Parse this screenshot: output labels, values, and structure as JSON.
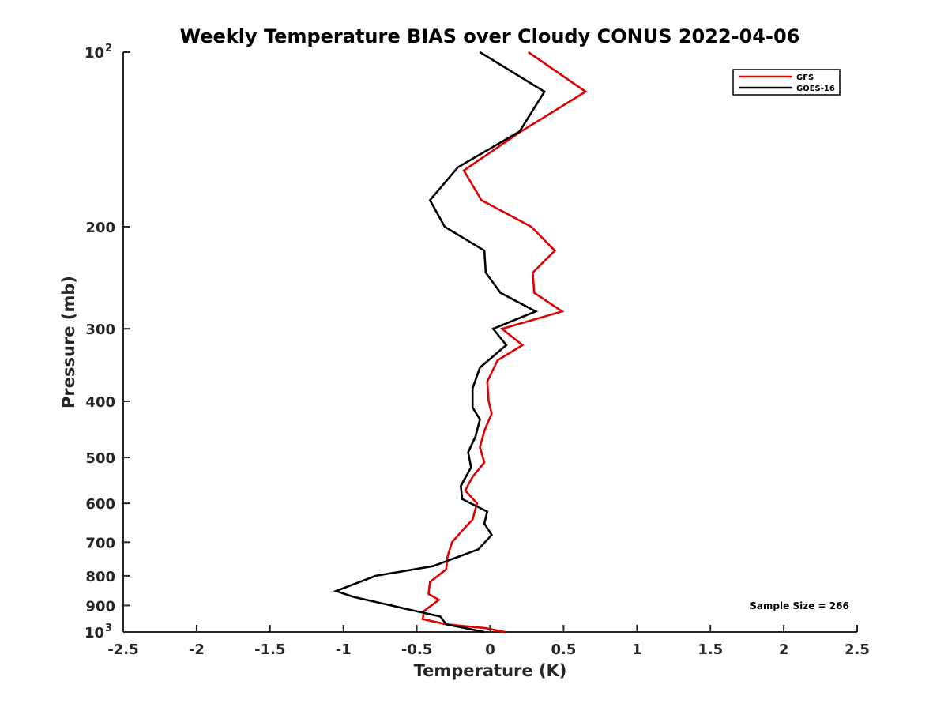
{
  "chart_data": {
    "type": "line",
    "title": "Weekly Temperature BIAS over Cloudy CONUS 2022-04-06",
    "xlabel": "Temperature (K)",
    "ylabel": "Pressure (mb)",
    "xlim": [
      -2.5,
      2.5
    ],
    "ylim": [
      100,
      1000
    ],
    "y_scale": "log",
    "y_reversed": true,
    "x_ticks": [
      -2.5,
      -2,
      -1.5,
      -1,
      -0.5,
      0,
      0.5,
      1,
      1.5,
      2,
      2.5
    ],
    "x_tick_labels": [
      "-2.5",
      "-2",
      "-1.5",
      "-1",
      "-0.5",
      "0",
      "0.5",
      "1",
      "1.5",
      "2",
      "2.5"
    ],
    "y_ticks": [
      {
        "value": 100,
        "label": "10",
        "exp": "2"
      },
      {
        "value": 200,
        "label": "200"
      },
      {
        "value": 300,
        "label": "300"
      },
      {
        "value": 400,
        "label": "400"
      },
      {
        "value": 500,
        "label": "500"
      },
      {
        "value": 600,
        "label": "600"
      },
      {
        "value": 700,
        "label": "700"
      },
      {
        "value": 800,
        "label": "800"
      },
      {
        "value": 900,
        "label": "900"
      },
      {
        "value": 1000,
        "label": "10",
        "exp": "3"
      }
    ],
    "grid": false,
    "legend_position": "top-right",
    "series": [
      {
        "name": "GFS",
        "color": "#e00000",
        "points": [
          {
            "p": 100,
            "t": 0.26
          },
          {
            "p": 117,
            "t": 0.65
          },
          {
            "p": 137,
            "t": 0.21
          },
          {
            "p": 160,
            "t": -0.18
          },
          {
            "p": 180,
            "t": -0.06
          },
          {
            "p": 200,
            "t": 0.28
          },
          {
            "p": 220,
            "t": 0.44
          },
          {
            "p": 240,
            "t": 0.29
          },
          {
            "p": 260,
            "t": 0.3
          },
          {
            "p": 280,
            "t": 0.49
          },
          {
            "p": 300,
            "t": 0.08
          },
          {
            "p": 320,
            "t": 0.22
          },
          {
            "p": 340,
            "t": 0.05
          },
          {
            "p": 370,
            "t": -0.02
          },
          {
            "p": 400,
            "t": -0.01
          },
          {
            "p": 420,
            "t": 0.01
          },
          {
            "p": 450,
            "t": -0.04
          },
          {
            "p": 480,
            "t": -0.07
          },
          {
            "p": 510,
            "t": -0.04
          },
          {
            "p": 540,
            "t": -0.12
          },
          {
            "p": 570,
            "t": -0.17
          },
          {
            "p": 600,
            "t": -0.09
          },
          {
            "p": 640,
            "t": -0.12
          },
          {
            "p": 660,
            "t": -0.17
          },
          {
            "p": 700,
            "t": -0.26
          },
          {
            "p": 740,
            "t": -0.29
          },
          {
            "p": 780,
            "t": -0.3
          },
          {
            "p": 820,
            "t": -0.41
          },
          {
            "p": 860,
            "t": -0.42
          },
          {
            "p": 880,
            "t": -0.35
          },
          {
            "p": 920,
            "t": -0.45
          },
          {
            "p": 950,
            "t": -0.46
          },
          {
            "p": 970,
            "t": -0.3
          },
          {
            "p": 985,
            "t": -0.03
          },
          {
            "p": 1000,
            "t": 0.1
          }
        ]
      },
      {
        "name": "GOES-16",
        "color": "#000000",
        "points": [
          {
            "p": 100,
            "t": -0.07
          },
          {
            "p": 117,
            "t": 0.37
          },
          {
            "p": 137,
            "t": 0.2
          },
          {
            "p": 158,
            "t": -0.22
          },
          {
            "p": 180,
            "t": -0.41
          },
          {
            "p": 200,
            "t": -0.31
          },
          {
            "p": 220,
            "t": -0.04
          },
          {
            "p": 240,
            "t": -0.03
          },
          {
            "p": 260,
            "t": 0.07
          },
          {
            "p": 280,
            "t": 0.31
          },
          {
            "p": 300,
            "t": 0.02
          },
          {
            "p": 320,
            "t": 0.11
          },
          {
            "p": 350,
            "t": -0.07
          },
          {
            "p": 380,
            "t": -0.12
          },
          {
            "p": 410,
            "t": -0.12
          },
          {
            "p": 430,
            "t": -0.07
          },
          {
            "p": 460,
            "t": -0.1
          },
          {
            "p": 490,
            "t": -0.15
          },
          {
            "p": 520,
            "t": -0.13
          },
          {
            "p": 560,
            "t": -0.2
          },
          {
            "p": 590,
            "t": -0.19
          },
          {
            "p": 620,
            "t": -0.02
          },
          {
            "p": 650,
            "t": -0.04
          },
          {
            "p": 680,
            "t": 0.01
          },
          {
            "p": 720,
            "t": -0.08
          },
          {
            "p": 770,
            "t": -0.39
          },
          {
            "p": 800,
            "t": -0.78
          },
          {
            "p": 850,
            "t": -1.05
          },
          {
            "p": 870,
            "t": -0.93
          },
          {
            "p": 920,
            "t": -0.51
          },
          {
            "p": 940,
            "t": -0.34
          },
          {
            "p": 970,
            "t": -0.3
          },
          {
            "p": 1000,
            "t": -0.04
          }
        ]
      }
    ],
    "annotations": [
      {
        "text": "Sample Size = 266"
      }
    ]
  }
}
